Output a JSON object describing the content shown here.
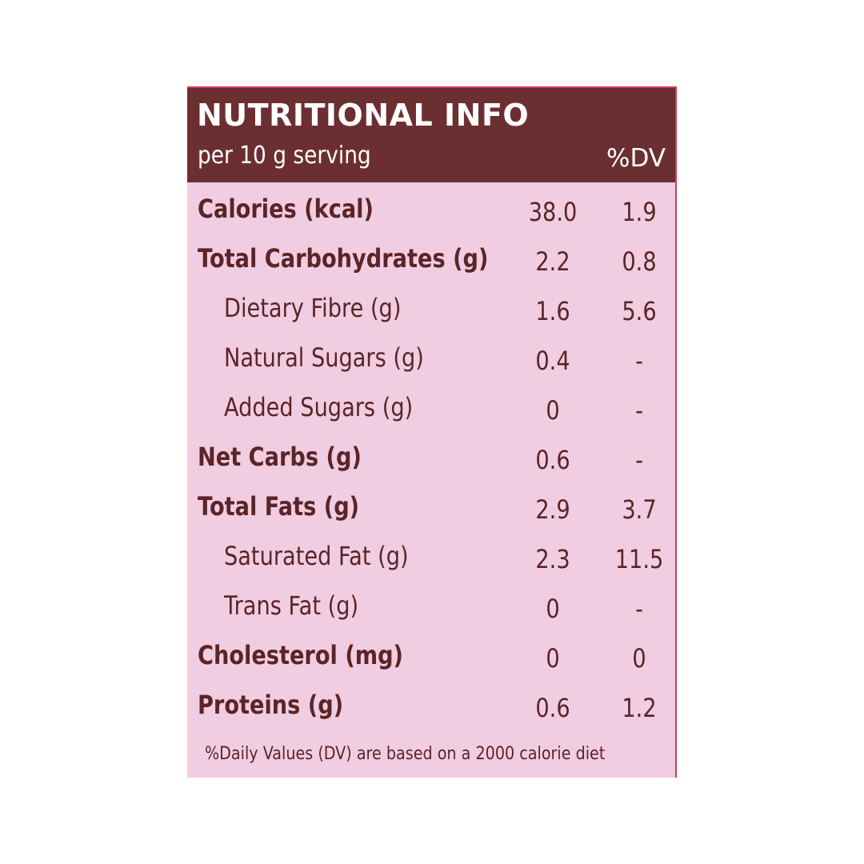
{
  "header": {
    "title": "NUTRITIONAL INFO",
    "serving": "per 10 g serving",
    "dv_label": "%DV"
  },
  "rows": [
    {
      "name": "Calories (kcal)",
      "amount": "38.0",
      "dv": "1.9",
      "style": "bold"
    },
    {
      "name": "Total Carbohydrates (g)",
      "amount": "2.2",
      "dv": "0.8",
      "style": "bold"
    },
    {
      "name": "Dietary Fibre (g)",
      "amount": "1.6",
      "dv": "5.6",
      "style": "sub"
    },
    {
      "name": "Natural Sugars (g)",
      "amount": "0.4",
      "dv": "-",
      "style": "sub"
    },
    {
      "name": "Added Sugars (g)",
      "amount": "0",
      "dv": "-",
      "style": "sub"
    },
    {
      "name": "Net Carbs (g)",
      "amount": "0.6",
      "dv": "-",
      "style": "bold"
    },
    {
      "name": "Total Fats (g)",
      "amount": "2.9",
      "dv": "3.7",
      "style": "bold"
    },
    {
      "name": "Saturated Fat (g)",
      "amount": "2.3",
      "dv": "11.5",
      "style": "sub"
    },
    {
      "name": "Trans Fat (g)",
      "amount": "0",
      "dv": "-",
      "style": "sub"
    },
    {
      "name": "Cholesterol (mg)",
      "amount": "0",
      "dv": "0",
      "style": "bold"
    },
    {
      "name": "Proteins (g)",
      "amount": "0.6",
      "dv": "1.2",
      "style": "bold"
    }
  ],
  "footnote": "%Daily Values (DV) are based on a 2000 calorie diet",
  "colors": {
    "header_bg": "#6c2f31",
    "panel_bg": "#f1cde2",
    "text": "#5b2426"
  }
}
